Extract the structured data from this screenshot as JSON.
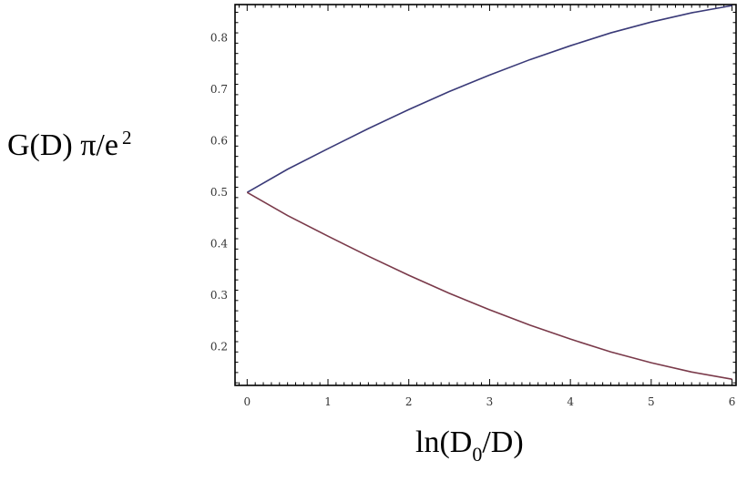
{
  "chart_data": {
    "type": "line",
    "title": "",
    "ylabel": {
      "main": "G(D) π/e",
      "superscript": "2"
    },
    "xlabel": {
      "prefix": "ln(D",
      "subscript": "0",
      "suffix": "/D)"
    },
    "xlim": [
      -0.15,
      6.05
    ],
    "ylim": [
      0.125,
      0.865
    ],
    "xticks": [
      0,
      1,
      2,
      3,
      4,
      5,
      6
    ],
    "xtick_labels": [
      "0",
      "1",
      "2",
      "3",
      "4",
      "5",
      "6"
    ],
    "yticks": [
      0.2,
      0.3,
      0.4,
      0.5,
      0.6,
      0.7,
      0.8
    ],
    "ytick_labels": [
      "0.2",
      "0.3",
      "0.4",
      "0.5",
      "0.6",
      "0.7",
      "0.8"
    ],
    "grid": false,
    "frame": "full box with ticks on all four sides",
    "x": [
      0,
      0.5,
      1,
      1.5,
      2,
      2.5,
      3,
      3.5,
      4,
      4.5,
      5,
      5.5,
      6
    ],
    "series": [
      {
        "color": "#3a3a78",
        "values": [
          0.5,
          0.545,
          0.585,
          0.624,
          0.661,
          0.696,
          0.728,
          0.758,
          0.785,
          0.81,
          0.831,
          0.849,
          0.863
        ]
      },
      {
        "color": "#7a3a4a",
        "values": [
          0.5,
          0.455,
          0.415,
          0.376,
          0.339,
          0.304,
          0.272,
          0.242,
          0.215,
          0.19,
          0.169,
          0.151,
          0.137
        ]
      }
    ]
  }
}
